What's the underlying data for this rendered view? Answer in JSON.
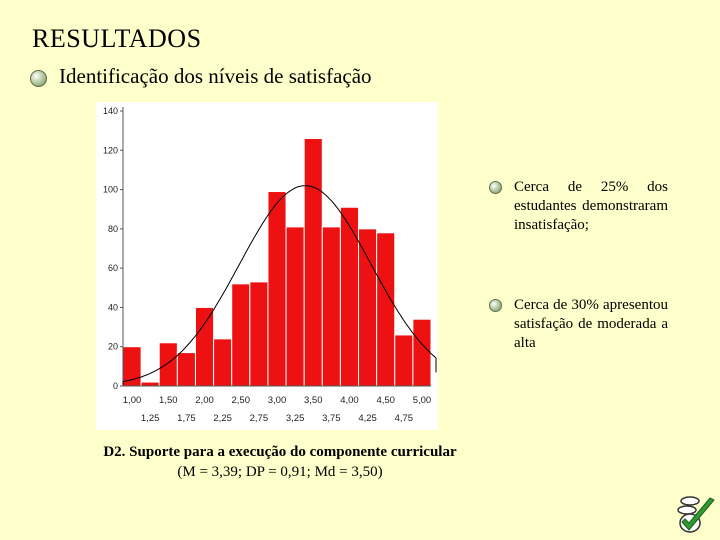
{
  "header": {
    "title": "RESULTADOS"
  },
  "subtitle": "Identificação dos níveis de satisfação",
  "bullets": [
    "Cerca de 25% dos estudantes demonstraram insatisfação;",
    "Cerca de 30% apresentou satisfação de moderada a alta"
  ],
  "caption": {
    "line1": "D2. Suporte para a execução do componente curricular",
    "line2": "(M = 3,39; DP = 0,91; Md = 3,50)"
  },
  "logo_icon": "quiz-checkmark-logo-icon",
  "chart_data": {
    "type": "bar",
    "subtype": "histogram-with-normal-curve",
    "categories": [
      "1,00",
      "1,25",
      "1,50",
      "1,75",
      "2,00",
      "2,25",
      "2,50",
      "2,75",
      "3,00",
      "3,25",
      "3,50",
      "3,75",
      "4,00",
      "4,25",
      "4,50",
      "4,75",
      "5,00"
    ],
    "x_ticks_row1": [
      "1,00",
      "1,50",
      "2,00",
      "2,50",
      "3,00",
      "3,50",
      "4,00",
      "4,50",
      "5,00"
    ],
    "x_ticks_row2": [
      "1,25",
      "1,75",
      "2,25",
      "2,75",
      "3,25",
      "3,75",
      "4,25",
      "4,75"
    ],
    "values": [
      20,
      2,
      22,
      17,
      40,
      24,
      52,
      53,
      99,
      81,
      126,
      81,
      91,
      80,
      78,
      26,
      34
    ],
    "y_ticks": [
      0,
      20,
      40,
      60,
      80,
      100,
      120,
      140
    ],
    "ylim": [
      0,
      140
    ],
    "normal_curve": {
      "mean": 3.39,
      "sd": 0.91,
      "peak": 102
    },
    "bar_color": "#ee1111",
    "grid": false,
    "title": "",
    "xlabel": "",
    "ylabel": ""
  }
}
